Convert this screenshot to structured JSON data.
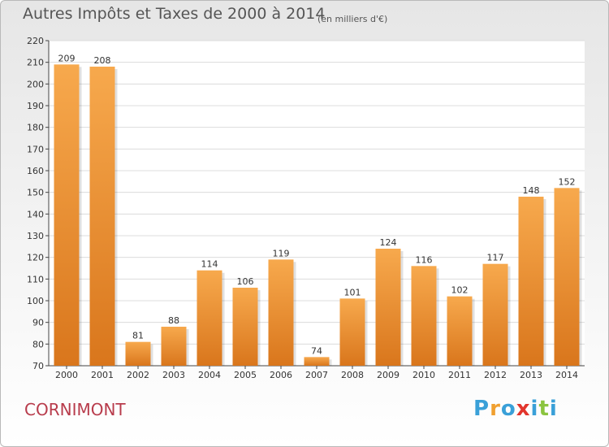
{
  "header": {
    "title": "Autres Impôts et Taxes de 2000 à 2014",
    "unit": "(en milliers d'€)"
  },
  "footer": {
    "place": "CORNIMONT",
    "logo": "Proxiti"
  },
  "colors": {
    "bar_light": "#f7a94d",
    "bar_dark": "#d9761c",
    "place": "#b83c4c",
    "logo": [
      "#3aa0d8",
      "#f0a030",
      "#3aa0d8",
      "#e2352c",
      "#3aa0d8",
      "#8bc43f",
      "#3aa0d8"
    ]
  },
  "chart_data": {
    "type": "bar",
    "title": "Autres Impôts et Taxes de 2000 à 2014",
    "subtitle": "(en milliers d'€)",
    "categories": [
      "2000",
      "2001",
      "2002",
      "2003",
      "2004",
      "2005",
      "2006",
      "2007",
      "2008",
      "2009",
      "2010",
      "2011",
      "2012",
      "2013",
      "2014"
    ],
    "values": [
      209,
      208,
      81,
      88,
      114,
      106,
      119,
      74,
      101,
      124,
      116,
      102,
      117,
      148,
      152
    ],
    "ylim": [
      70,
      220
    ],
    "yticks": [
      70,
      80,
      90,
      100,
      110,
      120,
      130,
      140,
      150,
      160,
      170,
      180,
      190,
      200,
      210,
      220
    ],
    "grid": true,
    "data_labels": true
  }
}
